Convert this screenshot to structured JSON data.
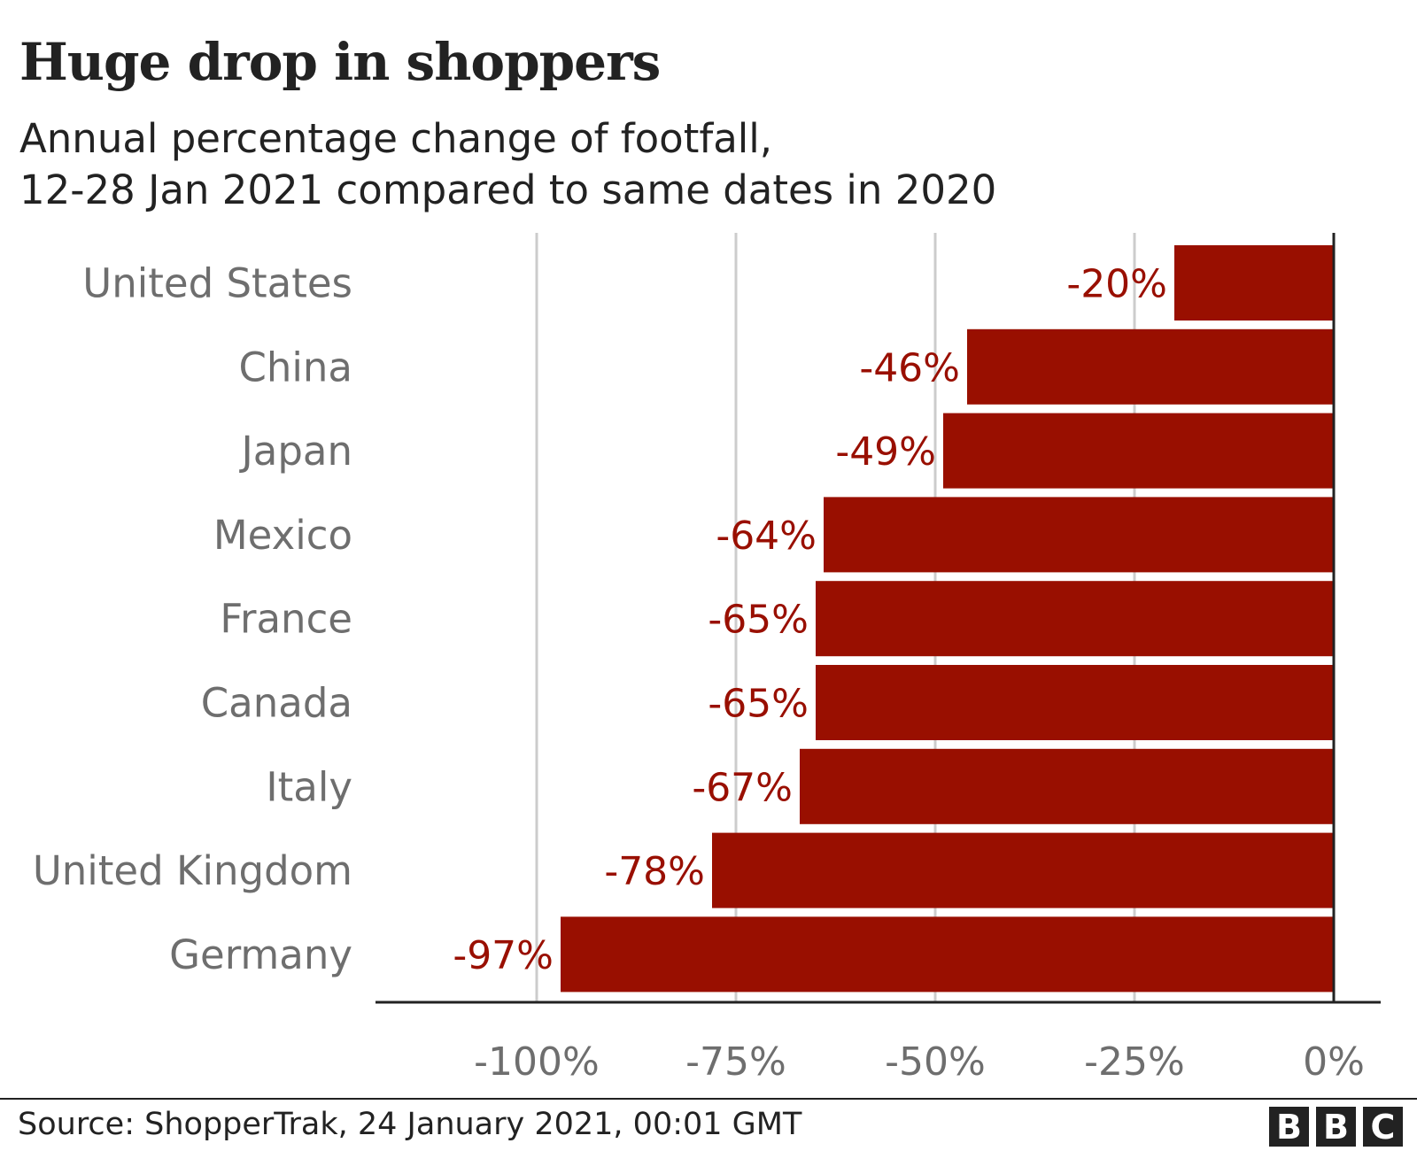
{
  "chart_data": {
    "type": "bar",
    "orientation": "horizontal",
    "title": "Huge drop in shoppers",
    "subtitle": [
      "Annual percentage change of footfall,",
      "12-28 Jan 2021 compared to same dates in 2020"
    ],
    "categories": [
      "United States",
      "China",
      "Japan",
      "Mexico",
      "France",
      "Canada",
      "Italy",
      "United Kingdom",
      "Germany"
    ],
    "values": [
      -20,
      -46,
      -49,
      -64,
      -65,
      -65,
      -67,
      -78,
      -97
    ],
    "data_labels": [
      "-20%",
      "-46%",
      "-49%",
      "-64%",
      "-65%",
      "-65%",
      "-67%",
      "-78%",
      "-97%"
    ],
    "xlim": [
      -120,
      0
    ],
    "xticks": [
      -100,
      -75,
      -50,
      -25,
      0
    ],
    "xtick_labels": [
      "-100%",
      "-75%",
      "-50%",
      "-25%",
      "0%"
    ],
    "grid": true,
    "bar_color": "#990f00",
    "label_color": "#990f00",
    "source": "Source: ShopperTrak, 24 January 2021, 00:01 GMT",
    "logo": [
      "B",
      "B",
      "C"
    ]
  }
}
